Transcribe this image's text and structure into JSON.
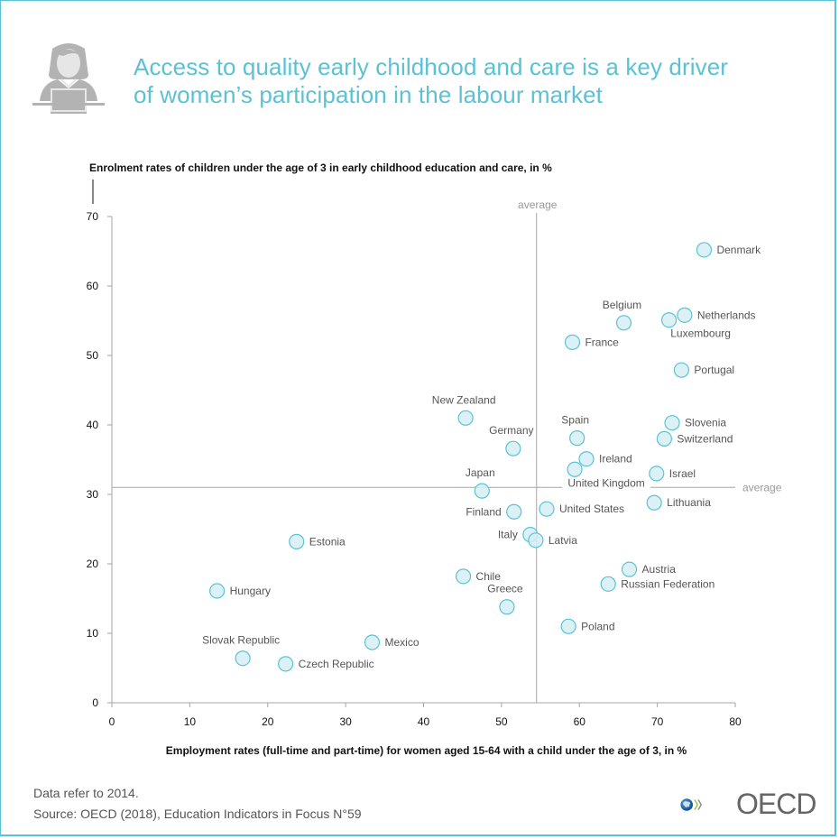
{
  "header": {
    "title_line1": "Access to quality early childhood and care is a key driver",
    "title_line2": "of women’s participation in the labour market",
    "icon": "woman-at-laptop-icon"
  },
  "footer": {
    "note": "Data refer to 2014.",
    "source": "Source: OECD (2018), Education Indicators in Focus N°59",
    "logo_text": "OECD",
    "logo_icon": "oecd-globe-logo"
  },
  "colors": {
    "accent": "#5bc2d4",
    "marker_fill": "#d6eff3",
    "marker_stroke": "#5bc2d4",
    "axis": "#a6a6a6",
    "label": "#555555"
  },
  "chart_data": {
    "type": "scatter",
    "title": "Access to quality early childhood and care is a key driver of women’s participation in the labour market",
    "ylabel": "Enrolment rates of children under the age of 3 in early childhood education and care, in %",
    "xlabel": "Employment rates (full-time and part-time) for women aged 15-64 with a child under the age of 3, in %",
    "xlim": [
      0,
      80
    ],
    "ylim": [
      0,
      70
    ],
    "xticks": [
      "0",
      "10",
      "20",
      "30",
      "40",
      "50",
      "60",
      "70",
      "80"
    ],
    "yticks": [
      "0",
      "10",
      "20",
      "30",
      "40",
      "50",
      "60",
      "70"
    ],
    "grid": false,
    "averages": {
      "x": 54.5,
      "y": 31,
      "x_label": "average",
      "y_label": "average"
    },
    "points": [
      {
        "name": "Denmark",
        "x": 76.0,
        "y": 65.2,
        "label_pos": "right"
      },
      {
        "name": "Belgium",
        "x": 65.7,
        "y": 54.7,
        "label_pos": "top"
      },
      {
        "name": "Luxembourg",
        "x": 71.5,
        "y": 55.1,
        "label_pos": "bottom"
      },
      {
        "name": "Netherlands",
        "x": 73.5,
        "y": 55.8,
        "label_pos": "right"
      },
      {
        "name": "France",
        "x": 59.1,
        "y": 51.9,
        "label_pos": "right"
      },
      {
        "name": "Portugal",
        "x": 73.1,
        "y": 47.9,
        "label_pos": "right"
      },
      {
        "name": "New Zealand",
        "x": 45.4,
        "y": 41.0,
        "label_pos": "top"
      },
      {
        "name": "Germany",
        "x": 51.5,
        "y": 36.6,
        "label_pos": "top"
      },
      {
        "name": "Spain",
        "x": 59.7,
        "y": 38.1,
        "label_pos": "top"
      },
      {
        "name": "Slovenia",
        "x": 71.9,
        "y": 40.3,
        "label_pos": "right"
      },
      {
        "name": "Switzerland",
        "x": 70.9,
        "y": 38.0,
        "label_pos": "right"
      },
      {
        "name": "Ireland",
        "x": 60.9,
        "y": 35.1,
        "label_pos": "right"
      },
      {
        "name": "United Kingdom",
        "x": 59.4,
        "y": 33.6,
        "label_pos": "bottom"
      },
      {
        "name": "Israel",
        "x": 69.9,
        "y": 33.0,
        "label_pos": "right"
      },
      {
        "name": "Japan",
        "x": 47.5,
        "y": 30.5,
        "label_pos": "top"
      },
      {
        "name": "Lithuania",
        "x": 69.6,
        "y": 28.8,
        "label_pos": "right"
      },
      {
        "name": "Finland",
        "x": 51.6,
        "y": 27.5,
        "label_pos": "left"
      },
      {
        "name": "United States",
        "x": 55.8,
        "y": 27.9,
        "label_pos": "right"
      },
      {
        "name": "Italy",
        "x": 53.7,
        "y": 24.2,
        "label_pos": "left"
      },
      {
        "name": "Latvia",
        "x": 54.4,
        "y": 23.4,
        "label_pos": "right"
      },
      {
        "name": "Estonia",
        "x": 23.7,
        "y": 23.2,
        "label_pos": "right"
      },
      {
        "name": "Chile",
        "x": 45.1,
        "y": 18.2,
        "label_pos": "right"
      },
      {
        "name": "Austria",
        "x": 66.4,
        "y": 19.2,
        "label_pos": "right"
      },
      {
        "name": "Russian Federation",
        "x": 63.7,
        "y": 17.1,
        "label_pos": "right"
      },
      {
        "name": "Hungary",
        "x": 13.5,
        "y": 16.1,
        "label_pos": "right"
      },
      {
        "name": "Greece",
        "x": 50.7,
        "y": 13.8,
        "label_pos": "top"
      },
      {
        "name": "Poland",
        "x": 58.6,
        "y": 11.0,
        "label_pos": "right"
      },
      {
        "name": "Mexico",
        "x": 33.4,
        "y": 8.7,
        "label_pos": "right"
      },
      {
        "name": "Slovak Republic",
        "x": 16.8,
        "y": 6.4,
        "label_pos": "top"
      },
      {
        "name": "Czech Republic",
        "x": 22.3,
        "y": 5.6,
        "label_pos": "right"
      }
    ]
  }
}
